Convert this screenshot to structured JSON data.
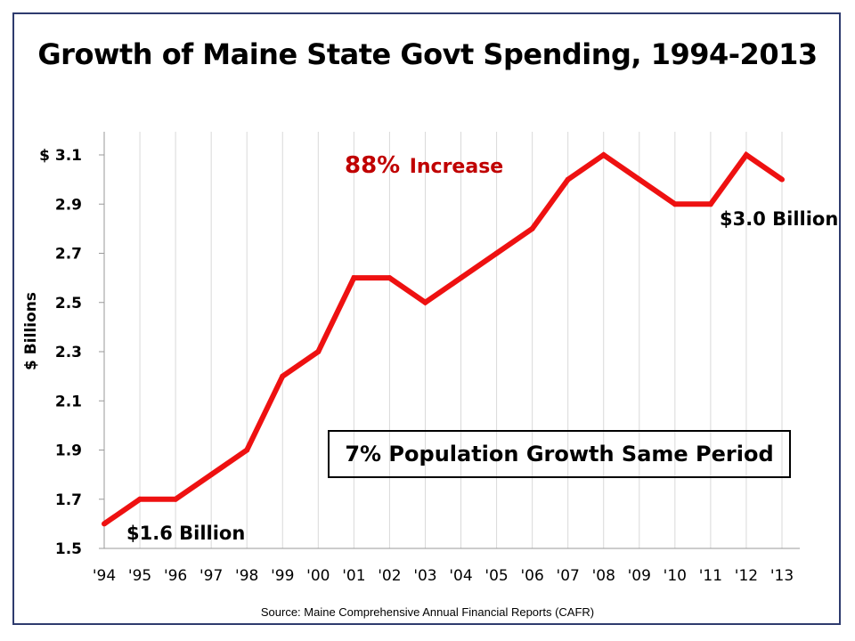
{
  "title": "Growth of Maine State Govt Spending, 1994-2013",
  "source": "Source:  Maine Comprehensive Annual Financial Reports (CAFR)",
  "callout_box": "7% Population Growth Same Period",
  "colors": {
    "line": "#ee1111",
    "increase": "#c00000",
    "frame": "#2e3b6e",
    "grid": "#d9d9d9"
  },
  "chart_data": {
    "type": "line",
    "title": "Growth of Maine State Govt Spending, 1994-2013",
    "ylabel": "$ Billions",
    "xlabel": "",
    "ylim": [
      1.5,
      3.1
    ],
    "yticks": [
      1.5,
      1.7,
      1.9,
      2.1,
      2.3,
      2.5,
      2.7,
      2.9,
      3.1
    ],
    "ytick_labels": [
      "1.5",
      "1.7",
      "1.9",
      "2.1",
      "2.3",
      "2.5",
      "2.7",
      "2.9",
      "$ 3.1"
    ],
    "categories": [
      "'94",
      "'95",
      "'96",
      "'97",
      "'98",
      "'99",
      "'00",
      "'01",
      "'02",
      "'03",
      "'04",
      "'05",
      "'06",
      "'07",
      "'08",
      "'09",
      "'10",
      "'11",
      "'12",
      "'13"
    ],
    "values": [
      1.6,
      1.7,
      1.7,
      1.8,
      1.9,
      2.2,
      2.3,
      2.6,
      2.6,
      2.5,
      2.6,
      2.7,
      2.8,
      3.0,
      3.1,
      3.0,
      2.9,
      2.9,
      3.1,
      3.0
    ],
    "grid": "vertical",
    "annotations": {
      "increase_pct": "88%",
      "increase_word": "Increase",
      "start_label": "$1.6 Billion",
      "end_label": "$3.0 Billion"
    }
  }
}
